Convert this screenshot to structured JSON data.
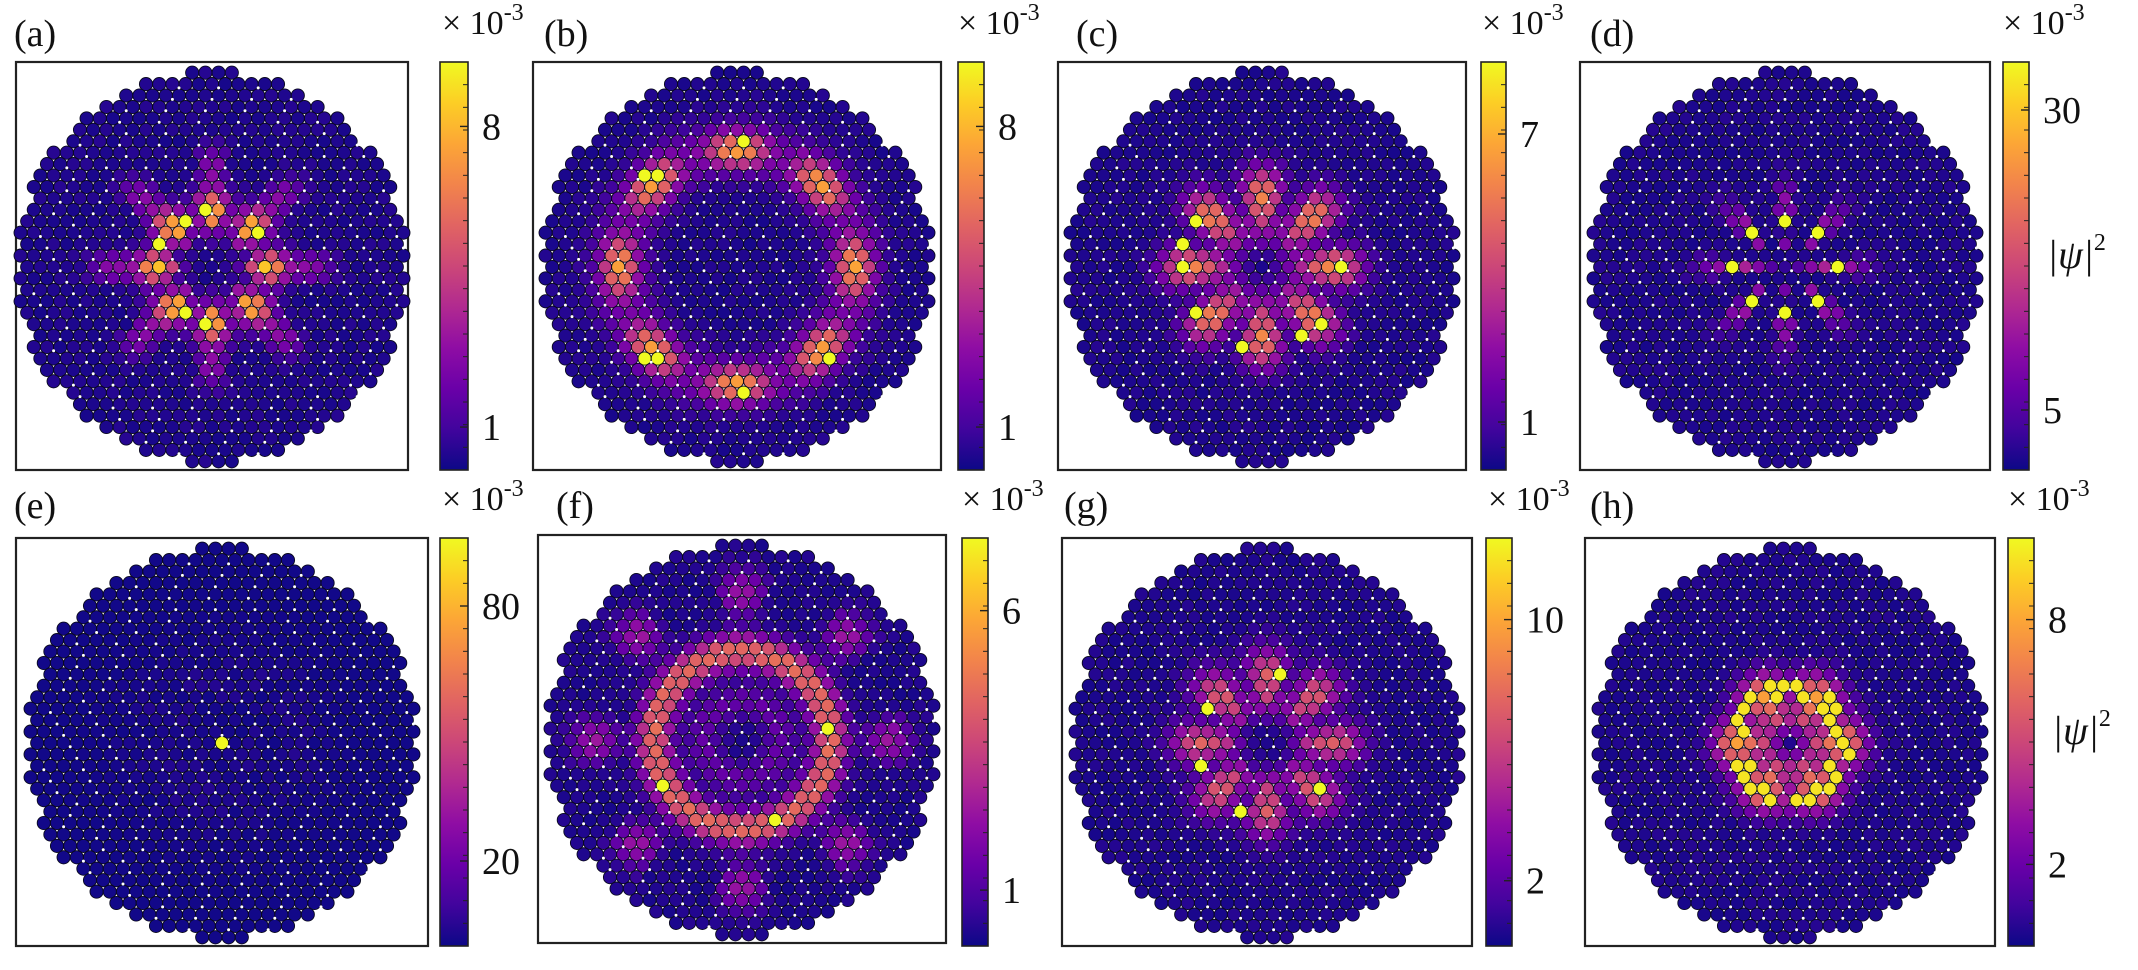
{
  "colors": {
    "base_site": "#22116b",
    "site_edge": "#0a0a1e",
    "dot": "#ffffff",
    "colormap": [
      "#0d0887",
      "#41049d",
      "#6a00a8",
      "#8f0da4",
      "#b12a90",
      "#cc4778",
      "#e16462",
      "#f2844b",
      "#fca636",
      "#fcce25",
      "#f0f921"
    ]
  },
  "chart_data": [
    {
      "type": "heatmap",
      "panel_label": "(a)",
      "colorbar": {
        "exponent": "× 10-3",
        "ticks": [
          {
            "value": 8,
            "label": "8"
          },
          {
            "value": 1,
            "label": "1"
          }
        ],
        "range": [
          0,
          9.5
        ]
      },
      "colorbar_label": "",
      "pattern": "inner-ring",
      "vmax": 9
    },
    {
      "type": "heatmap",
      "panel_label": "(b)",
      "colorbar": {
        "exponent": "× 10-3",
        "ticks": [
          {
            "value": 8,
            "label": "8"
          },
          {
            "value": 1,
            "label": "1"
          }
        ],
        "range": [
          0,
          9.5
        ]
      },
      "colorbar_label": "",
      "pattern": "outer-ring",
      "vmax": 9
    },
    {
      "type": "heatmap",
      "panel_label": "(c)",
      "colorbar": {
        "exponent": "× 10-3",
        "ticks": [
          {
            "value": 7,
            "label": "7"
          },
          {
            "value": 1,
            "label": "1"
          }
        ],
        "range": [
          0,
          8.5
        ]
      },
      "colorbar_label": "",
      "pattern": "mid-ring",
      "vmax": 8
    },
    {
      "type": "heatmap",
      "panel_label": "(d)",
      "colorbar": {
        "exponent": "× 10-3",
        "ticks": [
          {
            "value": 30,
            "label": "30"
          },
          {
            "value": 5,
            "label": "5"
          }
        ],
        "range": [
          0,
          34
        ]
      },
      "colorbar_label": "|ψ|",
      "colorbar_label_sup": "2",
      "pattern": "star",
      "vmax": 32
    },
    {
      "type": "heatmap",
      "panel_label": "(e)",
      "colorbar": {
        "exponent": "× 10-3",
        "ticks": [
          {
            "value": 80,
            "label": "80"
          },
          {
            "value": 20,
            "label": "20"
          }
        ],
        "range": [
          0,
          96
        ]
      },
      "colorbar_label": "",
      "pattern": "center",
      "vmax": 95
    },
    {
      "type": "heatmap",
      "panel_label": "(f)",
      "colorbar": {
        "exponent": "× 10-3",
        "ticks": [
          {
            "value": 6,
            "label": "6"
          },
          {
            "value": 1,
            "label": "1"
          }
        ],
        "range": [
          0,
          7.3
        ]
      },
      "colorbar_label": "",
      "pattern": "wide-ring",
      "vmax": 7
    },
    {
      "type": "heatmap",
      "panel_label": "(g)",
      "colorbar": {
        "exponent": "× 10-3",
        "ticks": [
          {
            "value": 10,
            "label": "10"
          },
          {
            "value": 2,
            "label": "2"
          }
        ],
        "range": [
          0,
          12.5
        ]
      },
      "colorbar_label": "",
      "pattern": "mid-ring2",
      "vmax": 12
    },
    {
      "type": "heatmap",
      "panel_label": "(h)",
      "colorbar": {
        "exponent": "× 10-3",
        "ticks": [
          {
            "value": 8,
            "label": "8"
          },
          {
            "value": 2,
            "label": "2"
          }
        ],
        "range": [
          0,
          10
        ]
      },
      "colorbar_label": "|ψ|",
      "colorbar_label_sup": "2",
      "pattern": "dense-ring",
      "vmax": 10
    }
  ]
}
